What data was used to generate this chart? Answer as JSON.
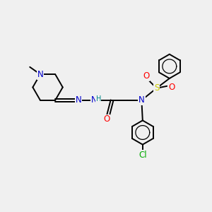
{
  "background_color": "#f0f0f0",
  "atom_colors": {
    "C": "#000000",
    "N": "#0000cc",
    "O": "#ff0000",
    "S": "#cccc00",
    "Cl": "#00aa00",
    "H": "#008888"
  },
  "bond_color": "#000000",
  "bond_width": 1.4,
  "font_size_atom": 8.5,
  "figsize": [
    3.0,
    3.0
  ],
  "dpi": 100
}
